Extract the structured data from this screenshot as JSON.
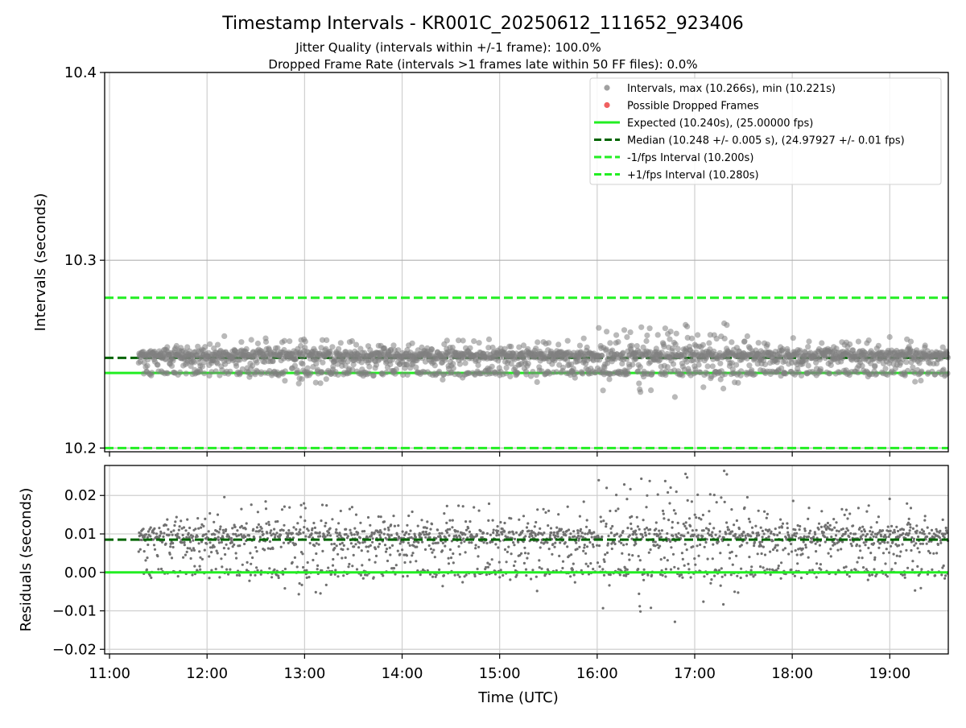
{
  "chart_data": {
    "type": "scatter",
    "title": "Timestamp Intervals - KR001C_20250612_111652_923406",
    "subtitle_lines": [
      "Jitter Quality (intervals within +/-1 frame): 100.0%",
      "Dropped Frame Rate (intervals >1 frames late within 50 FF files): 0.0%"
    ],
    "x_axis": {
      "label": "Time (UTC)",
      "range_hours": [
        10.95,
        19.6
      ],
      "ticks": [
        "11:00",
        "12:00",
        "13:00",
        "14:00",
        "15:00",
        "16:00",
        "17:00",
        "18:00",
        "19:00"
      ],
      "tick_hours": [
        11,
        12,
        13,
        14,
        15,
        16,
        17,
        18,
        19
      ]
    },
    "panels": [
      {
        "name": "intervals",
        "ylabel": "Intervals (seconds)",
        "ylim": [
          10.198,
          10.4
        ],
        "yticks": [
          10.2,
          10.3,
          10.4
        ],
        "ytick_labels": [
          "10.2",
          "10.3",
          "10.4"
        ],
        "grid": true,
        "reference_lines": [
          {
            "value": 10.24,
            "style": "solid",
            "color": "#22ee22"
          },
          {
            "value": 10.248,
            "style": "dashed",
            "color": "#006400"
          },
          {
            "value": 10.2,
            "style": "dashed",
            "color": "#22ee22"
          },
          {
            "value": 10.28,
            "style": "dashed",
            "color": "#22ee22"
          }
        ],
        "legend_position": "upper right",
        "legend": [
          {
            "label": "Intervals, max (10.266s), min (10.221s)",
            "marker": "dot",
            "color": "#a0a0a0"
          },
          {
            "label": "Possible Dropped Frames",
            "marker": "dot",
            "color": "#f06060"
          },
          {
            "label": "Expected (10.240s), (25.00000 fps)",
            "marker": "line-solid",
            "color": "#22ee22"
          },
          {
            "label": "Median (10.248 +/- 0.005 s), (24.97927 +/- 0.01 fps)",
            "marker": "line-dashed",
            "color": "#006400"
          },
          {
            "label": "-1/fps Interval (10.200s)",
            "marker": "line-dashed",
            "color": "#22ee22"
          },
          {
            "label": "+1/fps Interval (10.280s)",
            "marker": "line-dashed",
            "color": "#22ee22"
          }
        ]
      },
      {
        "name": "residuals",
        "ylabel": "Residuals (seconds)",
        "ylim": [
          -0.0212,
          0.0278
        ],
        "yticks": [
          -0.02,
          -0.01,
          0.0,
          0.01,
          0.02
        ],
        "ytick_labels": [
          "−0.02",
          "−0.01",
          "0.00",
          "0.01",
          "0.02"
        ],
        "grid": true,
        "reference_lines": [
          {
            "value": 0.0,
            "style": "solid",
            "color": "#22ee22"
          },
          {
            "value": 0.0085,
            "style": "dashed",
            "color": "#006400"
          }
        ]
      }
    ],
    "series": [
      {
        "name": "Intervals",
        "color": "#808080",
        "approx_points": 2100,
        "x_range_hours": [
          11.3,
          19.6
        ],
        "expected_interval": 10.24,
        "median_interval": 10.248,
        "max_interval": 10.266,
        "min_interval": 10.221,
        "spread_profile_hours": [
          11.3,
          12.0,
          12.6,
          13.0,
          13.5,
          14.0,
          15.0,
          15.7,
          16.5,
          17.0,
          17.6,
          18.0,
          19.0,
          19.6
        ],
        "spread_profile_sigma": [
          0.0045,
          0.004,
          0.006,
          0.0075,
          0.006,
          0.0045,
          0.0045,
          0.007,
          0.0085,
          0.0095,
          0.0075,
          0.0045,
          0.0045,
          0.005
        ]
      }
    ]
  }
}
